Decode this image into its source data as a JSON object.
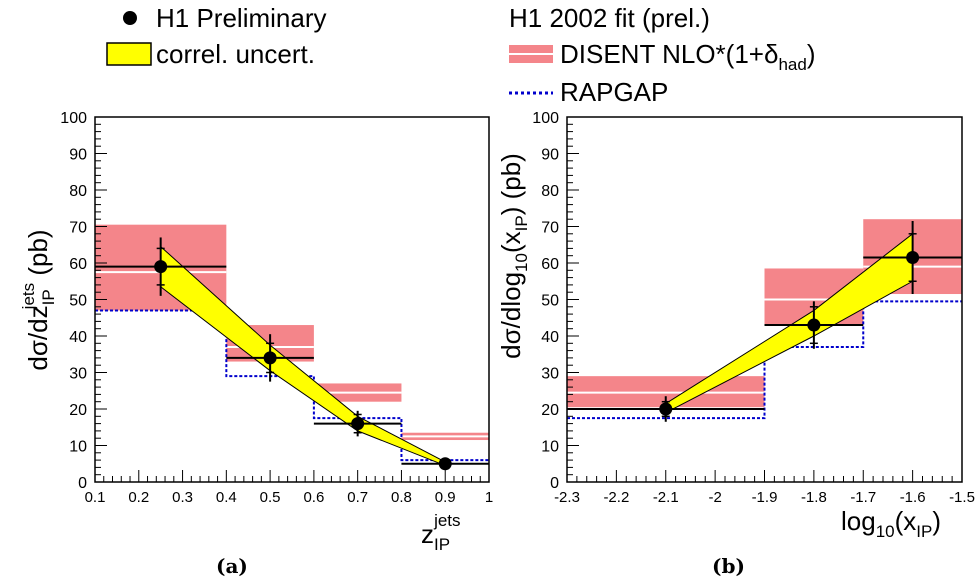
{
  "legend": {
    "data_label": "H1 Preliminary",
    "band_label": "correl. uncert.",
    "fit_label": "H1 2002 fit (prel.)",
    "disent_label_main": "DISENT NLO*(1+δ",
    "disent_label_sub": "had",
    "disent_label_end": ")",
    "rapgap_label": "RAPGAP"
  },
  "colors": {
    "data": "#000000",
    "band_fill": "#ffff00",
    "disent_fill": "#f4858a",
    "disent_center": "#ffffff",
    "rapgap": "#0000cc"
  },
  "chart_data": [
    {
      "type": "line",
      "panel_label": "(a)",
      "ylabel_main": "dσ/dz",
      "ylabel_sub": "IP",
      "ylabel_sup": "jets",
      "ylabel_end": " (pb)",
      "xlabel_main": "z",
      "xlabel_sub": "IP",
      "xlabel_sup": "jets",
      "xlim": [
        0.1,
        1.0
      ],
      "ylim": [
        0,
        100
      ],
      "x_ticks": [
        "0.1",
        "0.2",
        "0.3",
        "0.4",
        "0.5",
        "0.6",
        "0.7",
        "0.8",
        "0.9",
        "1"
      ],
      "x_tick_values": [
        0.1,
        0.2,
        0.3,
        0.4,
        0.5,
        0.6,
        0.7,
        0.8,
        0.9,
        1.0
      ],
      "y_ticks": [
        "0",
        "10",
        "20",
        "30",
        "40",
        "50",
        "60",
        "70",
        "80",
        "90",
        "100"
      ],
      "y_tick_values": [
        0,
        10,
        20,
        30,
        40,
        50,
        60,
        70,
        80,
        90,
        100
      ],
      "data": {
        "name": "H1 Preliminary",
        "bins": [
          [
            0.1,
            0.4
          ],
          [
            0.4,
            0.6
          ],
          [
            0.6,
            0.8
          ],
          [
            0.8,
            1.0
          ]
        ],
        "x": [
          0.25,
          0.5,
          0.7,
          0.9
        ],
        "y": [
          59,
          34,
          16,
          5
        ],
        "stat_err": [
          5,
          4,
          2.5,
          0.5
        ],
        "tot_err": [
          8,
          6.5,
          3.5,
          0.8
        ]
      },
      "correlated_band": {
        "x": [
          0.25,
          0.5,
          0.7,
          0.9
        ],
        "upper": [
          64.5,
          37.5,
          18,
          5.5
        ],
        "lower": [
          53.5,
          30.5,
          14,
          4.5
        ]
      },
      "disent": {
        "bins": [
          [
            0.1,
            0.4
          ],
          [
            0.4,
            0.6
          ],
          [
            0.6,
            0.8
          ],
          [
            0.8,
            1.0
          ]
        ],
        "center": [
          57.5,
          37,
          24.5,
          12.5
        ],
        "lower": [
          47,
          33,
          22,
          11.5
        ],
        "upper": [
          70.5,
          43,
          27,
          13.5
        ]
      },
      "rapgap": {
        "bins": [
          [
            0.1,
            0.4
          ],
          [
            0.4,
            0.6
          ],
          [
            0.6,
            0.8
          ],
          [
            0.8,
            1.0
          ]
        ],
        "values": [
          47,
          29,
          17.5,
          6
        ]
      }
    },
    {
      "type": "line",
      "panel_label": "(b)",
      "ylabel_main": "dσ/dlog",
      "ylabel_sub": "10",
      "ylabel_mid": "(x",
      "ylabel_sub2": "IP",
      "ylabel_end": ") (pb)",
      "xlabel_main": "log",
      "xlabel_sub": "10",
      "xlabel_mid": "(x",
      "xlabel_sub2": "IP",
      "xlabel_end": ")",
      "xlim": [
        -2.3,
        -1.5
      ],
      "ylim": [
        0,
        100
      ],
      "x_ticks": [
        "-2.3",
        "-2.2",
        "-2.1",
        "-2",
        "-1.9",
        "-1.8",
        "-1.7",
        "-1.6",
        "-1.5"
      ],
      "x_tick_values": [
        -2.3,
        -2.2,
        -2.1,
        -2.0,
        -1.9,
        -1.8,
        -1.7,
        -1.6,
        -1.5
      ],
      "y_ticks": [
        "0",
        "10",
        "20",
        "30",
        "40",
        "50",
        "60",
        "70",
        "80",
        "90",
        "100"
      ],
      "y_tick_values": [
        0,
        10,
        20,
        30,
        40,
        50,
        60,
        70,
        80,
        90,
        100
      ],
      "data": {
        "name": "H1 Preliminary",
        "bins": [
          [
            -2.3,
            -1.9
          ],
          [
            -1.9,
            -1.7
          ],
          [
            -1.7,
            -1.5
          ]
        ],
        "x": [
          -2.1,
          -1.8,
          -1.6
        ],
        "y": [
          20,
          43,
          61.5
        ],
        "stat_err": [
          2,
          5,
          6.5
        ],
        "tot_err": [
          3.5,
          6.5,
          10
        ]
      },
      "correlated_band": {
        "x": [
          -2.1,
          -1.8,
          -1.6
        ],
        "upper": [
          21.5,
          47,
          68
        ],
        "lower": [
          19,
          40,
          55
        ]
      },
      "disent": {
        "bins": [
          [
            -2.3,
            -1.9
          ],
          [
            -1.9,
            -1.7
          ],
          [
            -1.7,
            -1.5
          ]
        ],
        "center": [
          24.5,
          50,
          59
        ],
        "lower": [
          20.5,
          43,
          51.5
        ],
        "upper": [
          29,
          58.5,
          72
        ]
      },
      "rapgap": {
        "bins": [
          [
            -2.3,
            -1.9
          ],
          [
            -1.9,
            -1.7
          ],
          [
            -1.7,
            -1.5
          ]
        ],
        "values": [
          17.5,
          37,
          49.5
        ]
      }
    }
  ]
}
